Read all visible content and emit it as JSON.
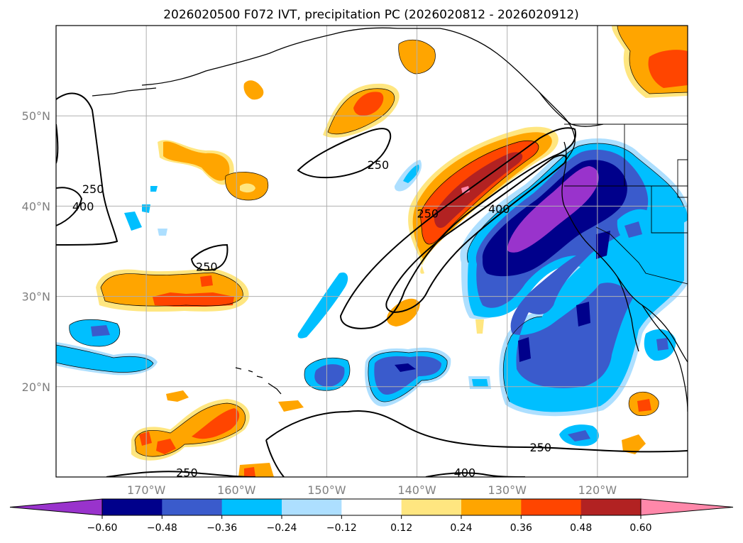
{
  "chart_data": {
    "type": "map-contour",
    "title": "2026020500 F072 IVT, precipitation PC (2026020812 - 2026020912)",
    "x_ticks": [
      "170°W",
      "160°W",
      "150°W",
      "140°W",
      "130°W",
      "120°W"
    ],
    "x_tick_values": [
      -170,
      -160,
      -150,
      -140,
      -130,
      -120
    ],
    "y_ticks": [
      "50°N",
      "40°N",
      "30°N",
      "20°N"
    ],
    "y_tick_values": [
      50,
      40,
      30,
      20
    ],
    "lon_range": [
      -180,
      -110
    ],
    "lat_range": [
      10,
      60
    ],
    "grid": true,
    "colorbar": {
      "levels": [
        -0.6,
        -0.48,
        -0.36,
        -0.24,
        -0.12,
        0.12,
        0.24,
        0.36,
        0.48,
        0.6
      ],
      "labels": [
        "−0.60",
        "−0.48",
        "−0.36",
        "−0.24",
        "−0.12",
        "0.12",
        "0.24",
        "0.36",
        "0.48",
        "0.60"
      ],
      "colors": [
        "#9933cc",
        "#00008b",
        "#3a5bcc",
        "#00bfff",
        "#addfff",
        "#ffffff",
        "#ffe680",
        "#ffa500",
        "#ff4500",
        "#b22222",
        "#ff88aa"
      ],
      "extend": "both"
    },
    "ivt_contour_labels": [
      {
        "label": "250",
        "lon": -175.9,
        "lat": 41.9
      },
      {
        "label": "400",
        "lon": -177.0,
        "lat": 40.0
      },
      {
        "label": "250",
        "lon": -144.3,
        "lat": 44.6
      },
      {
        "label": "250",
        "lon": -138.8,
        "lat": 39.2
      },
      {
        "label": "400",
        "lon": -130.9,
        "lat": 39.7
      },
      {
        "label": "250",
        "lon": -163.3,
        "lat": 33.3
      },
      {
        "label": "250",
        "lon": -126.3,
        "lat": 13.3
      },
      {
        "label": "250",
        "lon": -165.5,
        "lat": 10.5
      },
      {
        "label": "400",
        "lon": -134.7,
        "lat": 10.5
      }
    ]
  },
  "colors": {
    "frame": "#000000",
    "grid": "#b0b0b0",
    "coast": "#000000"
  }
}
